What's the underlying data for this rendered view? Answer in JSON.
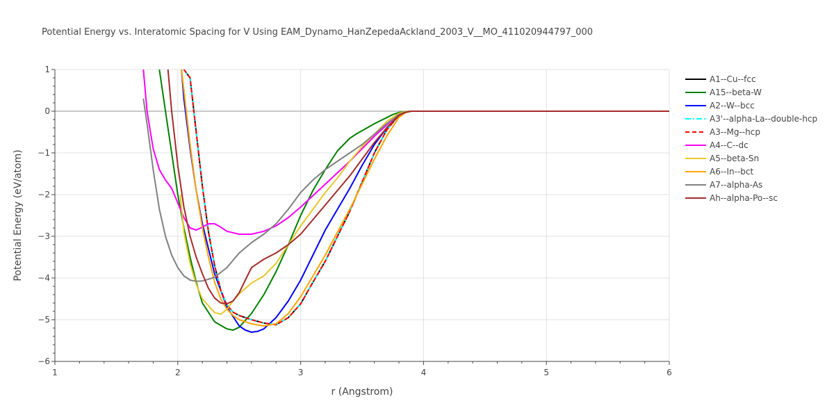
{
  "chart_data": {
    "type": "line",
    "title": "Potential Energy vs. Interatomic Spacing for V Using EAM_Dynamo_HanZepedaAckland_2003_V__MO_411020944797_000",
    "xlabel": "r (Angstrom)",
    "ylabel": "Potential Energy (eV/atom)",
    "xlim": [
      1,
      6
    ],
    "ylim": [
      -6,
      1
    ],
    "xticks": [
      1,
      2,
      3,
      4,
      5,
      6
    ],
    "xtick_labels": [
      "1",
      "2",
      "3",
      "4",
      "5",
      "6"
    ],
    "yticks": [
      1,
      0,
      -1,
      -2,
      -3,
      -4,
      -5,
      -6
    ],
    "ytick_labels": [
      "1",
      "0",
      "−1",
      "−2",
      "−3",
      "−4",
      "−5",
      "−6"
    ],
    "grid": true,
    "legend_position": "right",
    "series": [
      {
        "name": "A1--Cu--fcc",
        "color": "#000000",
        "dash": "solid",
        "x": [
          2.05,
          2.1,
          2.15,
          2.2,
          2.25,
          2.3,
          2.35,
          2.4,
          2.45,
          2.5,
          2.55,
          2.6,
          2.7,
          2.8,
          2.9,
          3.0,
          3.1,
          3.2,
          3.3,
          3.4,
          3.5,
          3.6,
          3.7,
          3.8,
          3.85,
          3.9,
          4.0,
          4.5,
          5.0,
          5.5,
          6.0
        ],
        "y": [
          1.0,
          0.8,
          -0.5,
          -1.8,
          -2.9,
          -3.7,
          -4.3,
          -4.65,
          -4.82,
          -4.9,
          -4.95,
          -5.0,
          -5.08,
          -5.12,
          -4.95,
          -4.62,
          -4.1,
          -3.6,
          -3.0,
          -2.4,
          -1.7,
          -1.0,
          -0.45,
          -0.1,
          -0.03,
          0.0,
          0.0,
          0.0,
          0.0,
          0.0,
          0.0
        ]
      },
      {
        "name": "A15--beta-W",
        "color": "#008000",
        "dash": "solid",
        "x": [
          1.85,
          1.9,
          1.95,
          2.0,
          2.05,
          2.1,
          2.15,
          2.2,
          2.3,
          2.4,
          2.45,
          2.5,
          2.6,
          2.7,
          2.8,
          2.9,
          3.0,
          3.1,
          3.2,
          3.3,
          3.4,
          3.45,
          3.6,
          3.75,
          3.8,
          3.85,
          3.9,
          4.0,
          5.0,
          6.0
        ],
        "y": [
          1.0,
          0.0,
          -1.0,
          -2.0,
          -2.8,
          -3.5,
          -4.1,
          -4.6,
          -5.05,
          -5.22,
          -5.25,
          -5.18,
          -4.85,
          -4.4,
          -3.85,
          -3.2,
          -2.5,
          -1.9,
          -1.4,
          -0.95,
          -0.65,
          -0.55,
          -0.3,
          -0.08,
          -0.03,
          -0.01,
          0.0,
          0.0,
          0.0,
          0.0
        ]
      },
      {
        "name": "A2--W--bcc",
        "color": "#0000ff",
        "dash": "solid",
        "x": [
          2.03,
          2.05,
          2.1,
          2.15,
          2.2,
          2.3,
          2.4,
          2.5,
          2.55,
          2.6,
          2.65,
          2.7,
          2.8,
          2.9,
          3.0,
          3.1,
          3.2,
          3.3,
          3.4,
          3.5,
          3.6,
          3.7,
          3.8,
          3.85,
          3.9,
          4.0,
          5.0,
          6.0
        ],
        "y": [
          1.0,
          0.3,
          -0.9,
          -1.9,
          -2.7,
          -3.9,
          -4.7,
          -5.15,
          -5.25,
          -5.3,
          -5.28,
          -5.22,
          -4.95,
          -4.55,
          -4.05,
          -3.45,
          -2.85,
          -2.35,
          -1.85,
          -1.3,
          -0.8,
          -0.4,
          -0.1,
          -0.03,
          0.0,
          0.0,
          0.0,
          0.0
        ]
      },
      {
        "name": "A3'--alpha-La--double-hcp",
        "color": "#00ffff",
        "dash": "dashdot",
        "x": [
          2.05,
          2.1,
          2.15,
          2.2,
          2.25,
          2.3,
          2.35,
          2.4,
          2.45,
          2.5,
          2.55,
          2.6,
          2.7,
          2.8,
          2.9,
          3.0,
          3.1,
          3.2,
          3.3,
          3.4,
          3.5,
          3.6,
          3.7,
          3.8,
          3.85,
          3.9,
          4.0,
          4.5,
          5.0,
          5.5,
          6.0
        ],
        "y": [
          1.0,
          0.8,
          -0.5,
          -1.8,
          -2.9,
          -3.7,
          -4.3,
          -4.65,
          -4.82,
          -4.9,
          -4.95,
          -5.0,
          -5.08,
          -5.12,
          -4.95,
          -4.62,
          -4.1,
          -3.6,
          -3.0,
          -2.4,
          -1.7,
          -1.0,
          -0.45,
          -0.1,
          -0.03,
          0.0,
          0.0,
          0.0,
          0.0,
          0.0,
          0.0
        ]
      },
      {
        "name": "A3--Mg--hcp",
        "color": "#ff0000",
        "dash": "dash",
        "x": [
          2.05,
          2.1,
          2.15,
          2.2,
          2.25,
          2.3,
          2.35,
          2.4,
          2.45,
          2.5,
          2.55,
          2.6,
          2.7,
          2.8,
          2.9,
          3.0,
          3.1,
          3.2,
          3.3,
          3.4,
          3.5,
          3.6,
          3.7,
          3.8,
          3.85,
          3.9,
          4.0,
          4.5,
          5.0,
          5.5,
          6.0
        ],
        "y": [
          1.0,
          0.8,
          -0.5,
          -1.8,
          -2.9,
          -3.7,
          -4.3,
          -4.65,
          -4.82,
          -4.9,
          -4.95,
          -5.0,
          -5.08,
          -5.12,
          -4.95,
          -4.62,
          -4.1,
          -3.6,
          -3.0,
          -2.4,
          -1.7,
          -1.0,
          -0.45,
          -0.1,
          -0.03,
          0.0,
          0.0,
          0.0,
          0.0,
          0.0,
          0.0
        ]
      },
      {
        "name": "A4--C--dc",
        "color": "#ff00ff",
        "dash": "solid",
        "x": [
          1.72,
          1.75,
          1.8,
          1.85,
          1.9,
          1.95,
          2.0,
          2.05,
          2.1,
          2.15,
          2.2,
          2.25,
          2.3,
          2.35,
          2.4,
          2.5,
          2.6,
          2.7,
          2.8,
          2.9,
          3.0,
          3.2,
          3.4,
          3.6,
          3.75,
          3.85,
          3.9,
          4.0,
          5.0,
          6.0
        ],
        "y": [
          1.0,
          0.0,
          -0.9,
          -1.4,
          -1.65,
          -1.85,
          -2.2,
          -2.55,
          -2.8,
          -2.85,
          -2.78,
          -2.7,
          -2.7,
          -2.78,
          -2.88,
          -2.95,
          -2.95,
          -2.88,
          -2.75,
          -2.55,
          -2.3,
          -1.75,
          -1.2,
          -0.6,
          -0.2,
          -0.03,
          0.0,
          0.0,
          0.0,
          0.0
        ]
      },
      {
        "name": "A5--beta-Sn",
        "color": "#e6c829",
        "dash": "solid",
        "x": [
          2.02,
          2.05,
          2.1,
          2.15,
          2.2,
          2.3,
          2.35,
          2.4,
          2.45,
          2.5,
          2.55,
          2.6,
          2.7,
          2.8,
          2.9,
          3.0,
          3.1,
          3.2,
          3.3,
          3.4,
          3.5,
          3.6,
          3.7,
          3.8,
          3.85,
          3.9,
          4.0,
          5.0,
          6.0
        ],
        "y": [
          -2.0,
          -2.9,
          -3.65,
          -4.15,
          -4.5,
          -4.83,
          -4.87,
          -4.75,
          -4.55,
          -4.38,
          -4.25,
          -4.12,
          -3.95,
          -3.65,
          -3.2,
          -2.75,
          -2.35,
          -1.95,
          -1.6,
          -1.2,
          -0.85,
          -0.55,
          -0.25,
          -0.05,
          -0.01,
          0.0,
          0.0,
          0.0,
          0.0
        ]
      },
      {
        "name": "A6--In--bct",
        "color": "#ffa500",
        "dash": "solid",
        "x": [
          2.03,
          2.05,
          2.1,
          2.15,
          2.2,
          2.25,
          2.3,
          2.35,
          2.4,
          2.45,
          2.5,
          2.6,
          2.7,
          2.8,
          2.9,
          3.0,
          3.1,
          3.2,
          3.3,
          3.4,
          3.5,
          3.6,
          3.7,
          3.8,
          3.85,
          3.9,
          4.0,
          5.0,
          6.0
        ],
        "y": [
          1.0,
          0.5,
          -0.8,
          -1.9,
          -2.8,
          -3.5,
          -4.1,
          -4.5,
          -4.75,
          -4.9,
          -5.0,
          -5.1,
          -5.15,
          -5.1,
          -4.85,
          -4.45,
          -3.95,
          -3.45,
          -2.9,
          -2.35,
          -1.75,
          -1.15,
          -0.6,
          -0.15,
          -0.04,
          0.0,
          0.0,
          0.0,
          0.0
        ]
      },
      {
        "name": "A7--alpha-As",
        "color": "#808080",
        "dash": "solid",
        "x": [
          1.72,
          1.75,
          1.8,
          1.85,
          1.9,
          1.95,
          2.0,
          2.05,
          2.1,
          2.15,
          2.2,
          2.25,
          2.3,
          2.4,
          2.5,
          2.6,
          2.7,
          2.8,
          2.9,
          3.0,
          3.1,
          3.2,
          3.3,
          3.4,
          3.5,
          3.6,
          3.7,
          3.8,
          3.85,
          3.9,
          4.0,
          5.0,
          6.0
        ],
        "y": [
          0.3,
          -0.3,
          -1.4,
          -2.35,
          -3.0,
          -3.45,
          -3.75,
          -3.95,
          -4.05,
          -4.08,
          -4.07,
          -4.03,
          -3.98,
          -3.75,
          -3.4,
          -3.15,
          -2.95,
          -2.7,
          -2.35,
          -1.95,
          -1.65,
          -1.4,
          -1.2,
          -1.0,
          -0.8,
          -0.55,
          -0.3,
          -0.08,
          -0.02,
          0.0,
          0.0,
          0.0,
          0.0
        ]
      },
      {
        "name": "Ah--alpha-Po--sc",
        "color": "#a52a2a",
        "dash": "solid",
        "x": [
          1.92,
          1.95,
          2.0,
          2.05,
          2.1,
          2.15,
          2.2,
          2.25,
          2.3,
          2.35,
          2.4,
          2.45,
          2.5,
          2.55,
          2.6,
          2.7,
          2.8,
          2.9,
          3.0,
          3.1,
          3.2,
          3.3,
          3.4,
          3.5,
          3.6,
          3.7,
          3.8,
          3.85,
          3.9,
          4.0,
          5.0,
          6.0
        ],
        "y": [
          1.0,
          0.0,
          -1.3,
          -2.3,
          -3.0,
          -3.5,
          -3.9,
          -4.25,
          -4.48,
          -4.6,
          -4.62,
          -4.55,
          -4.35,
          -4.05,
          -3.75,
          -3.55,
          -3.4,
          -3.2,
          -2.95,
          -2.6,
          -2.25,
          -1.9,
          -1.55,
          -1.15,
          -0.75,
          -0.4,
          -0.1,
          -0.03,
          0.0,
          0.0,
          0.0,
          0.0
        ]
      }
    ]
  }
}
